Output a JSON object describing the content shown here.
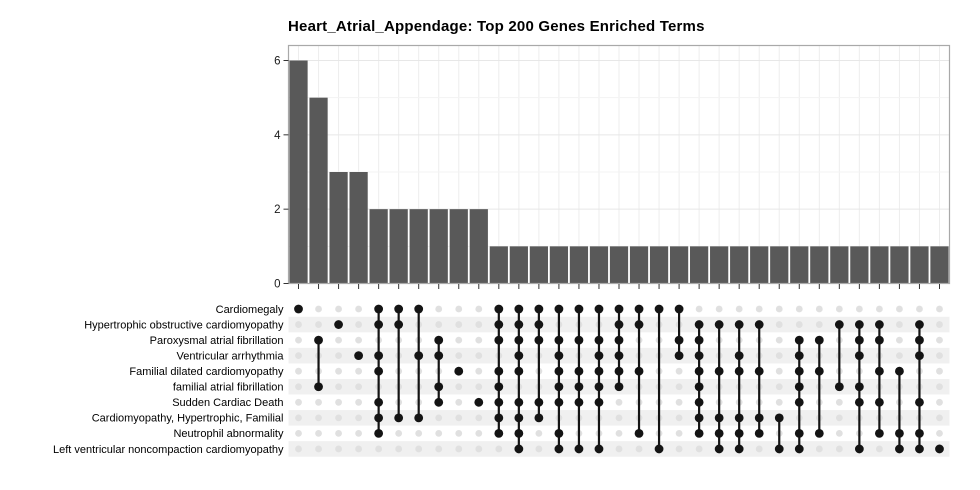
{
  "figure": {
    "title": "Heart_Atrial_Appendage: Top 200 Genes Enriched Terms"
  },
  "chart_data": {
    "type": "upset",
    "title": "Heart_Atrial_Appendage: Top 200 Genes Enriched Terms",
    "subtitle": "",
    "xlabel": "",
    "ylabel": "",
    "y_ticks": [
      0,
      2,
      4,
      6
    ],
    "ylim": [
      0,
      6.4
    ],
    "grid": true,
    "legend": "none",
    "bar_color": "#595959",
    "filled_dot_color": "#141414",
    "empty_dot_color": "#e0e0e0",
    "stripe_color": "#f0f0f0",
    "panel_border_color": "#a9a9a9",
    "sets": [
      "Cardiomegaly",
      "Hypertrophic obstructive cardiomyopathy",
      "Paroxysmal atrial fibrillation",
      "Ventricular arrhythmia",
      "Familial dilated cardiomyopathy",
      "familial atrial fibrillation",
      "Sudden Cardiac Death",
      "Cardiomyopathy, Hypertrophic, Familial",
      "Neutrophil abnormality",
      "Left ventricular noncompaction cardiomyopathy"
    ],
    "intersections": [
      {
        "size": 6,
        "set_indices": [
          0
        ]
      },
      {
        "size": 5,
        "set_indices": [
          2,
          5
        ]
      },
      {
        "size": 3,
        "set_indices": [
          1
        ]
      },
      {
        "size": 3,
        "set_indices": [
          3
        ]
      },
      {
        "size": 2,
        "set_indices": [
          0,
          1,
          3,
          4,
          6,
          7,
          8
        ]
      },
      {
        "size": 2,
        "set_indices": [
          0,
          1,
          7
        ]
      },
      {
        "size": 2,
        "set_indices": [
          0,
          3,
          7
        ]
      },
      {
        "size": 2,
        "set_indices": [
          2,
          3,
          5,
          6
        ]
      },
      {
        "size": 2,
        "set_indices": [
          4
        ]
      },
      {
        "size": 2,
        "set_indices": [
          6
        ]
      },
      {
        "size": 1,
        "set_indices": [
          0,
          1,
          2,
          4,
          5,
          6,
          7,
          8
        ]
      },
      {
        "size": 1,
        "set_indices": [
          0,
          1,
          2,
          3,
          4,
          6,
          7,
          8,
          9
        ]
      },
      {
        "size": 1,
        "set_indices": [
          0,
          1,
          2,
          6,
          7
        ]
      },
      {
        "size": 1,
        "set_indices": [
          0,
          2,
          3,
          4,
          5,
          6,
          8,
          9
        ]
      },
      {
        "size": 1,
        "set_indices": [
          0,
          2,
          4,
          5,
          6,
          9
        ]
      },
      {
        "size": 1,
        "set_indices": [
          0,
          2,
          3,
          4,
          5,
          6,
          9
        ]
      },
      {
        "size": 1,
        "set_indices": [
          0,
          1,
          2,
          3,
          4,
          5
        ]
      },
      {
        "size": 1,
        "set_indices": [
          0,
          1,
          4,
          8
        ]
      },
      {
        "size": 1,
        "set_indices": [
          0,
          9
        ]
      },
      {
        "size": 1,
        "set_indices": [
          0,
          2,
          3
        ]
      },
      {
        "size": 1,
        "set_indices": [
          1,
          2,
          3,
          4,
          5,
          6,
          7,
          8
        ]
      },
      {
        "size": 1,
        "set_indices": [
          1,
          4,
          7,
          8,
          9
        ]
      },
      {
        "size": 1,
        "set_indices": [
          1,
          3,
          4,
          7,
          8,
          9
        ]
      },
      {
        "size": 1,
        "set_indices": [
          1,
          4,
          7,
          8
        ]
      },
      {
        "size": 1,
        "set_indices": [
          7,
          9
        ]
      },
      {
        "size": 1,
        "set_indices": [
          2,
          3,
          4,
          5,
          6,
          8,
          9
        ]
      },
      {
        "size": 1,
        "set_indices": [
          2,
          4,
          8
        ]
      },
      {
        "size": 1,
        "set_indices": [
          1,
          5
        ]
      },
      {
        "size": 1,
        "set_indices": [
          1,
          2,
          3,
          5,
          6,
          9
        ]
      },
      {
        "size": 1,
        "set_indices": [
          1,
          2,
          4,
          6,
          8
        ]
      },
      {
        "size": 1,
        "set_indices": [
          4,
          8,
          9
        ]
      },
      {
        "size": 1,
        "set_indices": [
          1,
          2,
          3,
          6,
          8,
          9
        ]
      },
      {
        "size": 1,
        "set_indices": [
          9
        ]
      }
    ]
  }
}
